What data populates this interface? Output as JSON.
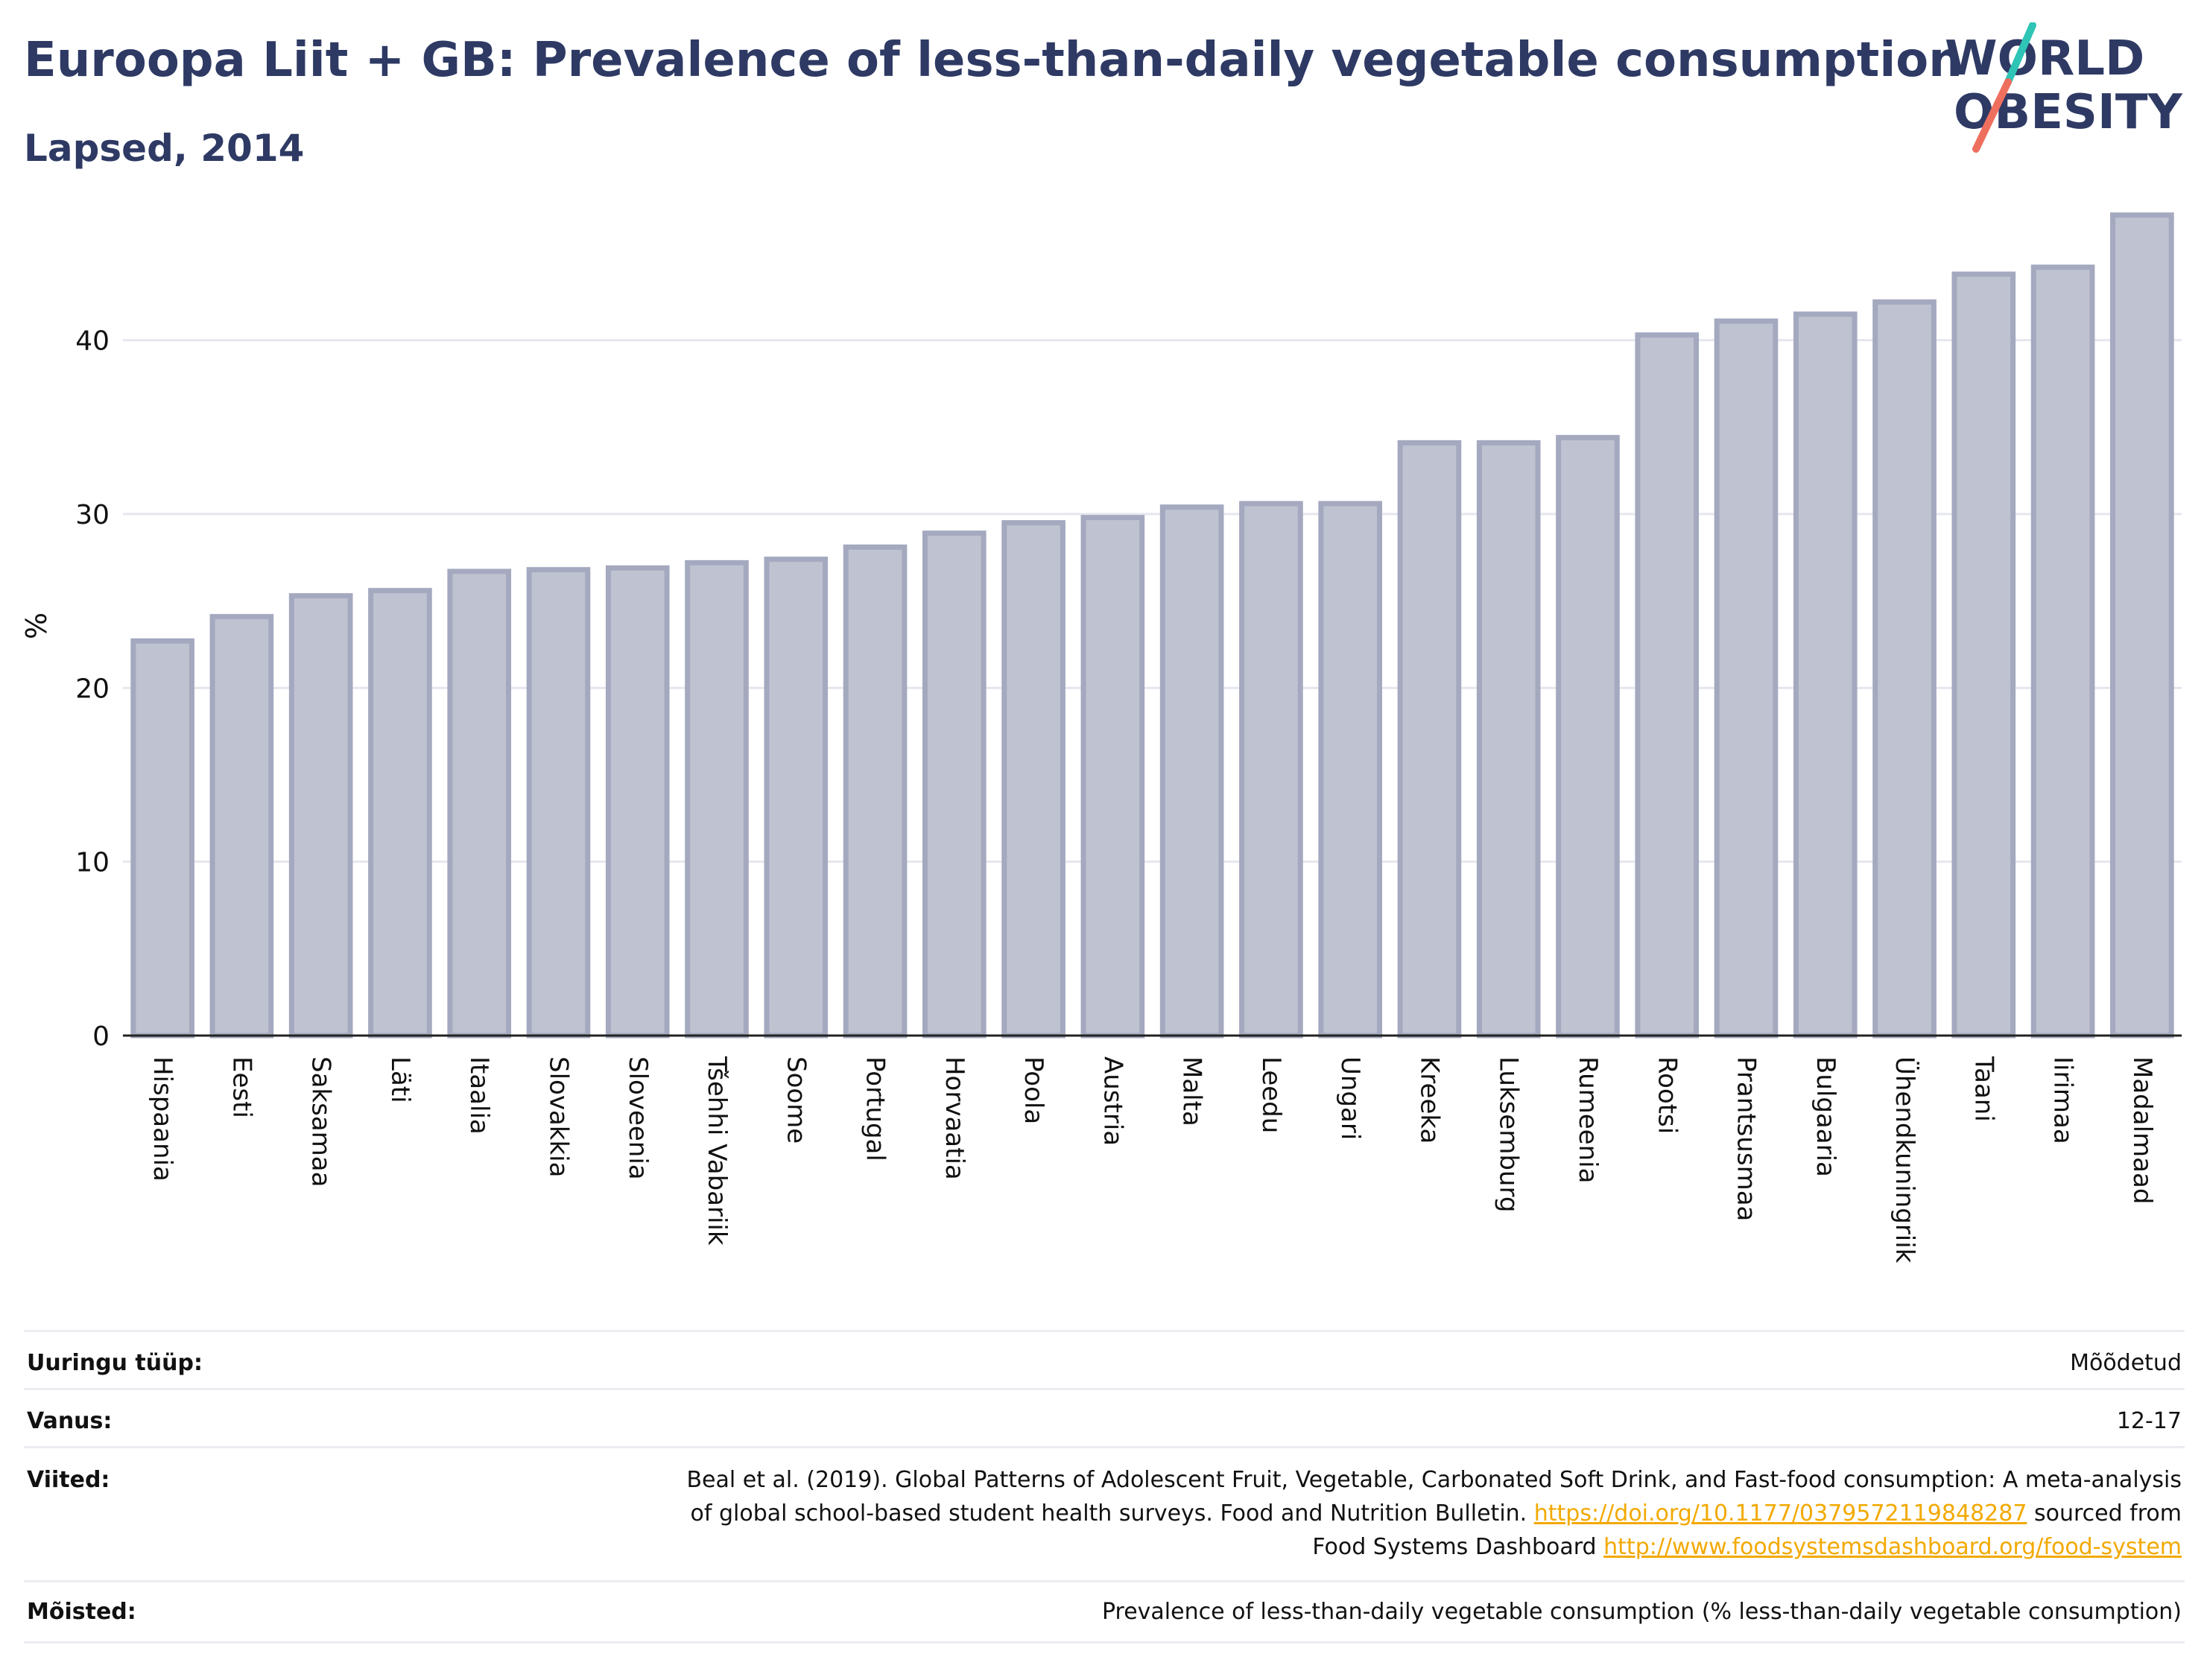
{
  "title": "Euroopa Liit + GB: Prevalence of less-than-daily vegetable consumption",
  "subtitle": "Lapsed, 2014",
  "logo": {
    "line1": "WORLD",
    "line2": "OBESITY",
    "accent_teal": "#2ec4b6",
    "accent_coral": "#ef6f5e"
  },
  "chart_data": {
    "type": "bar",
    "ylabel": "%",
    "xlabel": "",
    "ylim": [
      0,
      48
    ],
    "yticks": [
      0,
      10,
      20,
      30,
      40
    ],
    "grid": true,
    "bar_color": "#bfc2d0",
    "bar_edge_color": "#a4a9bf",
    "categories": [
      "Hispaania",
      "Eesti",
      "Saksamaa",
      "Läti",
      "Itaalia",
      "Slovakkia",
      "Sloveenia",
      "Tšehhi Vabariik",
      "Soome",
      "Portugal",
      "Horvaatia",
      "Poola",
      "Austria",
      "Malta",
      "Leedu",
      "Ungari",
      "Kreeka",
      "Luksemburg",
      "Rumeenia",
      "Rootsi",
      "Prantsusmaa",
      "Bulgaaria",
      "Ühendkuningriik",
      "Taani",
      "Iirimaa",
      "Madalmaad"
    ],
    "values": [
      22.7,
      24.1,
      25.3,
      25.6,
      26.7,
      26.8,
      26.9,
      27.2,
      27.4,
      28.1,
      28.9,
      29.5,
      29.8,
      30.4,
      30.6,
      30.6,
      34.1,
      34.1,
      34.4,
      40.3,
      41.1,
      41.5,
      42.2,
      43.8,
      44.2,
      47.2
    ]
  },
  "meta": {
    "survey_type_label": "Uuringu tüüp:",
    "survey_type_value": "Mõõdetud",
    "age_label": "Vanus:",
    "age_value": "12-17",
    "refs_label": "Viited:",
    "refs_text1": "Beal et al. (2019). Global Patterns of Adolescent Fruit, Vegetable, Carbonated Soft Drink, and Fast-food consumption: A meta-analysis",
    "refs_text2": "of global school-based student health surveys. Food and Nutrition Bulletin.",
    "refs_link1": "https://doi.org/10.1177/0379572119848287",
    "refs_text3": "sourced from",
    "refs_text4": "Food Systems Dashboard",
    "refs_link2": "http://www.foodsystemsdashboard.org/food-system",
    "definitions_label": "Mõisted:",
    "definitions_value": "Prevalence of less-than-daily vegetable consumption (% less-than-daily vegetable consumption)"
  }
}
